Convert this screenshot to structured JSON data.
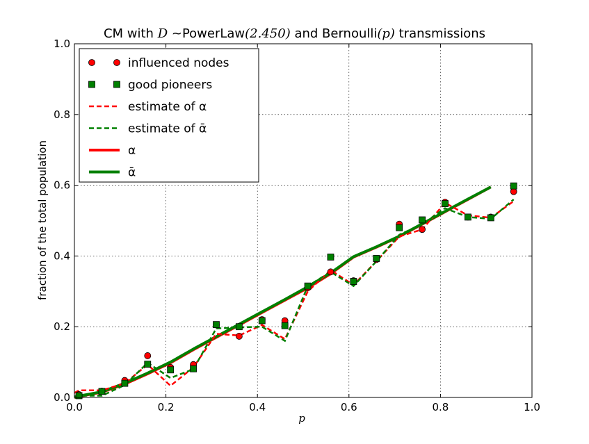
{
  "chart_data": {
    "type": "line",
    "title": "CM with D ~PowerLaw(2.450) and Bernoulli(p) transmissions",
    "title_parts": {
      "prefix": "CM with ",
      "dist_var": "D",
      "tilde": " ~",
      "dist_name": "PowerLaw",
      "dist_param": "(2.450)",
      "middle": " and Bernoulli",
      "p_arg": "(p)",
      "suffix": " transmissions"
    },
    "xlabel": "p",
    "ylabel": "fraction of the total population",
    "xlim": [
      0.0,
      1.0
    ],
    "ylim": [
      0.0,
      1.0
    ],
    "xticks": [
      "0.0",
      "0.2",
      "0.4",
      "0.6",
      "0.8",
      "1.0"
    ],
    "yticks": [
      "0.0",
      "0.2",
      "0.4",
      "0.6",
      "0.8",
      "1.0"
    ],
    "grid": true,
    "legend_position": "top-left",
    "colors": {
      "red": "#ff0000",
      "green": "#008000"
    },
    "series": [
      {
        "name": "influenced nodes",
        "style": "circle-markers",
        "color": "#ff0000",
        "x": [
          0.01,
          0.06,
          0.11,
          0.16,
          0.21,
          0.26,
          0.31,
          0.36,
          0.41,
          0.46,
          0.51,
          0.56,
          0.61,
          0.66,
          0.71,
          0.76,
          0.81,
          0.86,
          0.91,
          0.96
        ],
        "y": [
          0.008,
          0.018,
          0.048,
          0.118,
          0.085,
          0.093,
          0.205,
          0.173,
          0.22,
          0.217,
          0.31,
          0.355,
          0.33,
          0.39,
          0.49,
          0.475,
          0.552,
          0.51,
          0.51,
          0.582
        ]
      },
      {
        "name": "good pioneers",
        "style": "square-markers",
        "color": "#008000",
        "x": [
          0.01,
          0.06,
          0.11,
          0.16,
          0.21,
          0.26,
          0.31,
          0.36,
          0.41,
          0.46,
          0.51,
          0.56,
          0.61,
          0.66,
          0.71,
          0.76,
          0.81,
          0.86,
          0.91,
          0.96
        ],
        "y": [
          0.005,
          0.017,
          0.04,
          0.094,
          0.078,
          0.081,
          0.206,
          0.2,
          0.217,
          0.203,
          0.315,
          0.397,
          0.328,
          0.393,
          0.48,
          0.502,
          0.548,
          0.51,
          0.508,
          0.598
        ]
      },
      {
        "name": "estimate of α",
        "style": "dashed",
        "color": "#ff0000",
        "x": [
          0.0,
          0.01,
          0.06,
          0.11,
          0.16,
          0.21,
          0.26,
          0.31,
          0.36,
          0.41,
          0.46,
          0.51,
          0.56,
          0.61,
          0.66,
          0.71,
          0.76,
          0.81,
          0.86,
          0.91,
          0.96
        ],
        "y": [
          0.013,
          0.02,
          0.02,
          0.04,
          0.093,
          0.033,
          0.085,
          0.18,
          0.175,
          0.205,
          0.165,
          0.3,
          0.36,
          0.318,
          0.385,
          0.455,
          0.475,
          0.55,
          0.515,
          0.508,
          0.555
        ]
      },
      {
        "name": "estimate of ᾱ",
        "style": "dashed",
        "color": "#008000",
        "x": [
          0.0,
          0.01,
          0.06,
          0.11,
          0.16,
          0.21,
          0.26,
          0.31,
          0.36,
          0.41,
          0.46,
          0.51,
          0.56,
          0.61,
          0.66,
          0.71,
          0.76,
          0.81,
          0.86,
          0.91,
          0.96
        ],
        "y": [
          0.003,
          0.005,
          0.005,
          0.035,
          0.098,
          0.055,
          0.08,
          0.195,
          0.198,
          0.2,
          0.16,
          0.315,
          0.355,
          0.315,
          0.385,
          0.46,
          0.49,
          0.535,
          0.51,
          0.505,
          0.56
        ]
      },
      {
        "name": "α",
        "style": "solid",
        "color": "#ff0000",
        "x": [
          0.0,
          0.01,
          0.06,
          0.11,
          0.16,
          0.21,
          0.26,
          0.31,
          0.36,
          0.41,
          0.46,
          0.51,
          0.56,
          0.61,
          0.66,
          0.71,
          0.76,
          0.81,
          0.86,
          0.91
        ],
        "y": [
          0.0,
          0.003,
          0.015,
          0.038,
          0.067,
          0.098,
          0.135,
          0.17,
          0.205,
          0.24,
          0.275,
          0.31,
          0.35,
          0.397,
          0.425,
          0.455,
          0.49,
          0.525,
          0.56,
          0.595
        ]
      },
      {
        "name": "ᾱ",
        "style": "solid",
        "color": "#008000",
        "x": [
          0.0,
          0.01,
          0.06,
          0.11,
          0.16,
          0.21,
          0.26,
          0.31,
          0.36,
          0.41,
          0.46,
          0.51,
          0.56,
          0.61,
          0.66,
          0.71,
          0.76,
          0.81,
          0.86,
          0.91
        ],
        "y": [
          0.0,
          0.004,
          0.016,
          0.04,
          0.069,
          0.1,
          0.137,
          0.172,
          0.207,
          0.242,
          0.277,
          0.313,
          0.352,
          0.398,
          0.426,
          0.456,
          0.491,
          0.526,
          0.561,
          0.595
        ]
      }
    ]
  }
}
